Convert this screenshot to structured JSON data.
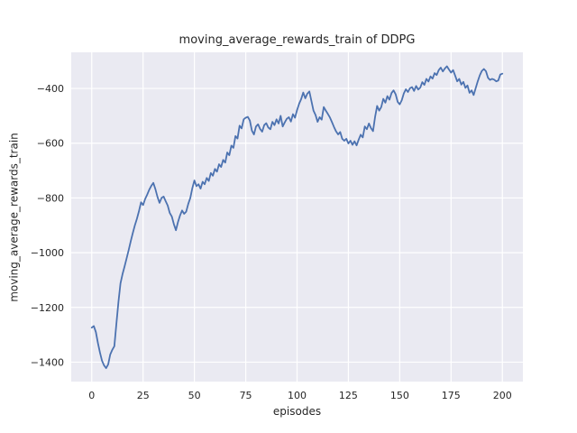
{
  "figure": {
    "title": "moving_average_rewards_train of DDPG",
    "xlabel": "episodes",
    "ylabel": "moving_average_rewards_train"
  },
  "chart_data": {
    "type": "line",
    "title": "moving_average_rewards_train of DDPG",
    "xlabel": "episodes",
    "ylabel": "moving_average_rewards_train",
    "x": "episode index 0-200 (one point per episode)",
    "x_ticks": [
      0,
      25,
      50,
      75,
      100,
      125,
      150,
      175,
      200
    ],
    "y_ticks": [
      -400,
      -600,
      -800,
      -1000,
      -1200,
      -1400
    ],
    "xlim": [
      -10,
      210
    ],
    "ylim": [
      -1471,
      -268
    ],
    "grid": true,
    "legend": false,
    "styles": {
      "line_color": "#4C72B0",
      "plot_bg": "#EAEAF2",
      "grid_color": "#FFFFFF",
      "text_color": "#262626",
      "figure_bg": "#FFFFFF"
    },
    "series": [
      {
        "name": "moving_average_rewards_train",
        "y": [
          -1274,
          -1268,
          -1290,
          -1330,
          -1365,
          -1395,
          -1412,
          -1422,
          -1408,
          -1372,
          -1355,
          -1342,
          -1260,
          -1180,
          -1112,
          -1078,
          -1050,
          -1020,
          -990,
          -958,
          -928,
          -900,
          -876,
          -848,
          -816,
          -826,
          -804,
          -788,
          -770,
          -756,
          -745,
          -768,
          -796,
          -818,
          -800,
          -795,
          -812,
          -828,
          -855,
          -868,
          -896,
          -918,
          -888,
          -864,
          -846,
          -858,
          -850,
          -822,
          -800,
          -764,
          -736,
          -757,
          -750,
          -766,
          -741,
          -750,
          -727,
          -738,
          -709,
          -719,
          -694,
          -704,
          -677,
          -687,
          -661,
          -671,
          -634,
          -644,
          -609,
          -617,
          -574,
          -583,
          -536,
          -546,
          -513,
          -507,
          -504,
          -517,
          -554,
          -568,
          -539,
          -531,
          -548,
          -558,
          -534,
          -527,
          -543,
          -549,
          -522,
          -534,
          -513,
          -528,
          -500,
          -539,
          -524,
          -511,
          -505,
          -521,
          -494,
          -507,
          -479,
          -456,
          -439,
          -415,
          -436,
          -419,
          -411,
          -446,
          -481,
          -497,
          -522,
          -505,
          -514,
          -468,
          -481,
          -493,
          -506,
          -523,
          -541,
          -557,
          -568,
          -559,
          -584,
          -591,
          -584,
          -601,
          -591,
          -606,
          -593,
          -608,
          -587,
          -569,
          -579,
          -539,
          -549,
          -528,
          -545,
          -556,
          -504,
          -464,
          -481,
          -468,
          -438,
          -452,
          -428,
          -441,
          -417,
          -407,
          -421,
          -449,
          -458,
          -443,
          -418,
          -403,
          -413,
          -399,
          -395,
          -409,
          -391,
          -404,
          -397,
          -377,
          -387,
          -365,
          -375,
          -356,
          -364,
          -344,
          -351,
          -333,
          -324,
          -338,
          -327,
          -319,
          -331,
          -342,
          -333,
          -353,
          -374,
          -365,
          -386,
          -376,
          -398,
          -389,
          -416,
          -407,
          -424,
          -399,
          -374,
          -352,
          -336,
          -329,
          -337,
          -361,
          -369,
          -365,
          -368,
          -374,
          -371,
          -349,
          -346
        ]
      }
    ]
  }
}
